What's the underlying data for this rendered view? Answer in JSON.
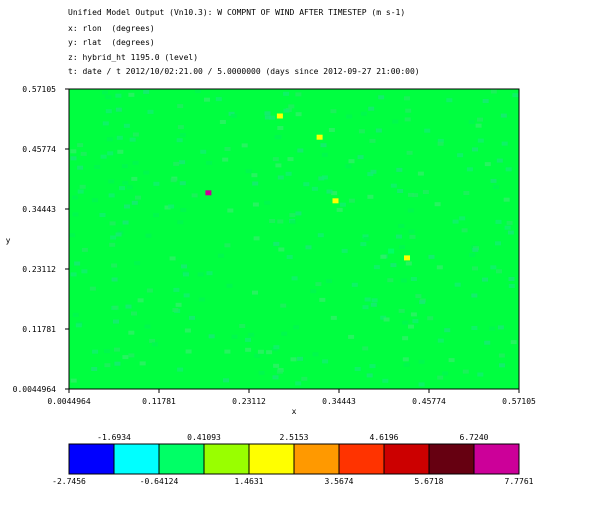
{
  "header": {
    "line1": "Unified Model Output (Vn10.3): W COMPNT OF WIND AFTER TIMESTEP (m s-1)",
    "line2": "x: rlon  (degrees)",
    "line3": "y: rlat  (degrees)",
    "line4": "z: hybrid_ht 1195.0 (level)",
    "line5": "t: date / t 2012/10/02:21.00 / 5.0000000 (days since 2012-09-27 21:00:00)"
  },
  "chart_data": {
    "type": "heatmap",
    "xlabel": "x",
    "ylabel": "y",
    "xlim": [
      0.0044964,
      0.57105
    ],
    "ylim": [
      0.0044964,
      0.57105
    ],
    "x_ticks": [
      "0.0044964",
      "0.11781",
      "0.23112",
      "0.34443",
      "0.45774",
      "0.57105"
    ],
    "y_ticks": [
      "0.0044964",
      "0.11781",
      "0.23112",
      "0.34443",
      "0.45774",
      "0.57105"
    ],
    "background_value": 0.41,
    "hotspots": [
      {
        "x": 0.41,
        "y": 0.265,
        "value": 0.0
      },
      {
        "x": 0.43,
        "y": 0.252,
        "value": 2.1
      },
      {
        "x": 0.34,
        "y": 0.36,
        "value": 2.3
      },
      {
        "x": 0.32,
        "y": 0.48,
        "value": 2.0
      },
      {
        "x": 0.27,
        "y": 0.52,
        "value": 2.3
      },
      {
        "x": 0.18,
        "y": 0.375,
        "value": 7.0
      }
    ],
    "colorbar": {
      "colors": [
        "#0000ff",
        "#00ffff",
        "#00ff66",
        "#99ff00",
        "#ffff00",
        "#ff9900",
        "#ff3300",
        "#cc0000",
        "#660011",
        "#cc0099"
      ],
      "upper_labels": [
        "-1.6934",
        "0.41093",
        "2.5153",
        "4.6196",
        "6.7240"
      ],
      "lower_labels": [
        "-2.7456",
        "-0.64124",
        "1.4631",
        "3.5674",
        "5.6718",
        "7.7761"
      ]
    }
  }
}
